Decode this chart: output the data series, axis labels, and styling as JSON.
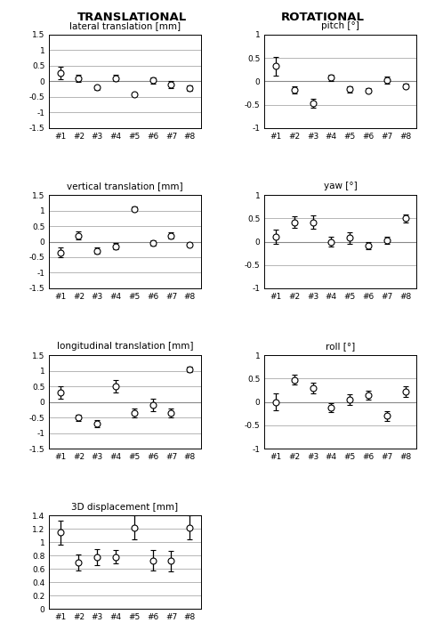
{
  "volunteers": [
    "#1",
    "#2",
    "#3",
    "#4",
    "#5",
    "#6",
    "#7",
    "#8"
  ],
  "lateral_mean": [
    0.28,
    0.1,
    -0.2,
    0.1,
    -0.42,
    0.03,
    -0.1,
    -0.22
  ],
  "lateral_std": [
    0.2,
    0.12,
    0.08,
    0.1,
    0.07,
    0.1,
    0.12,
    0.08
  ],
  "vertical_mean": [
    -0.35,
    0.2,
    -0.3,
    -0.15,
    1.05,
    -0.05,
    0.2,
    -0.1
  ],
  "vertical_std": [
    0.15,
    0.12,
    0.1,
    0.1,
    0.07,
    0.08,
    0.1,
    0.07
  ],
  "longitudinal_mean": [
    0.3,
    -0.5,
    -0.7,
    0.5,
    -0.35,
    -0.1,
    -0.35,
    1.05
  ],
  "longitudinal_std": [
    0.2,
    0.1,
    0.12,
    0.2,
    0.15,
    0.2,
    0.15,
    0.1
  ],
  "displacement_mean": [
    1.15,
    0.7,
    0.78,
    0.78,
    1.22,
    0.73,
    0.72,
    1.22
  ],
  "displacement_std": [
    0.18,
    0.12,
    0.12,
    0.1,
    0.18,
    0.15,
    0.15,
    0.18
  ],
  "pitch_mean": [
    0.33,
    -0.18,
    -0.47,
    0.08,
    -0.17,
    -0.2,
    0.03,
    -0.1
  ],
  "pitch_std": [
    0.2,
    0.08,
    0.1,
    0.07,
    0.07,
    0.05,
    0.08,
    0.05
  ],
  "yaw_mean": [
    0.1,
    0.42,
    0.42,
    0.0,
    0.08,
    -0.08,
    0.03,
    0.5
  ],
  "yaw_std": [
    0.15,
    0.12,
    0.15,
    0.1,
    0.12,
    0.08,
    0.08,
    0.08
  ],
  "roll_mean": [
    0.0,
    0.48,
    0.3,
    -0.12,
    0.05,
    0.15,
    -0.3,
    0.22
  ],
  "roll_std": [
    0.18,
    0.1,
    0.12,
    0.1,
    0.12,
    0.1,
    0.1,
    0.12
  ],
  "title_left": "TRANSLATIONAL",
  "title_right": "ROTATIONAL",
  "subplot_titles": [
    "lateral translation [mm]",
    "vertical translation [mm]",
    "longitudinal translation [mm]",
    "3D displacement [mm]",
    "pitch [°]",
    "yaw [°]",
    "roll [°]"
  ],
  "ylim_trans": [
    -1.5,
    1.5
  ],
  "yticks_trans": [
    -1.5,
    -1.0,
    -0.5,
    0.0,
    0.5,
    1.0,
    1.5
  ],
  "ylim_disp": [
    0.0,
    1.4
  ],
  "yticks_disp": [
    0.0,
    0.2,
    0.4,
    0.6,
    0.8,
    1.0,
    1.2,
    1.4
  ],
  "ylim_rot": [
    -1.0,
    1.0
  ],
  "yticks_rot": [
    -1.0,
    -0.5,
    0.0,
    0.5,
    1.0
  ],
  "marker_size": 5,
  "marker_facecolor": "white",
  "marker_edgecolor": "black",
  "capsize": 2.5,
  "elinewidth": 0.9,
  "ecolor": "black",
  "capthick": 0.9
}
